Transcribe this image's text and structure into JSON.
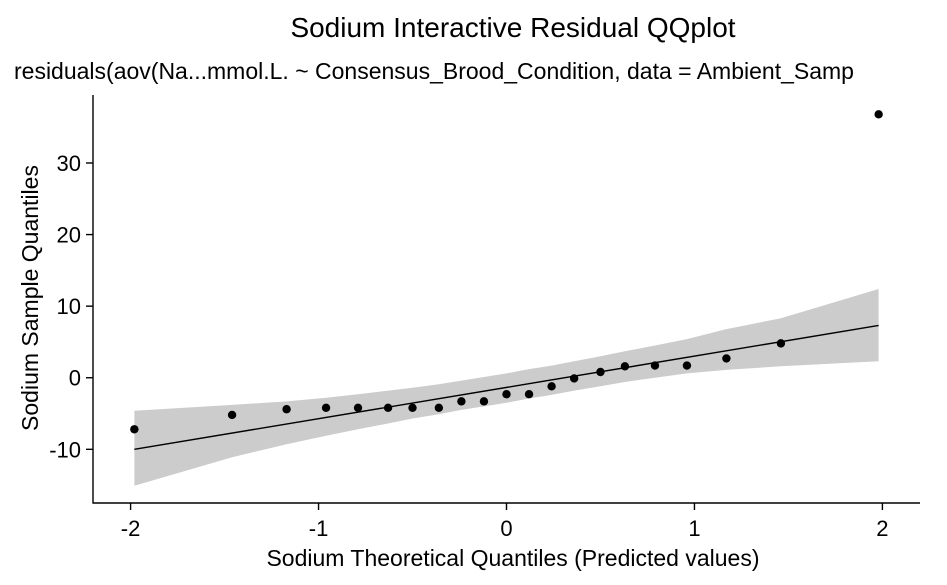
{
  "chart_data": {
    "type": "scatter",
    "title": "Sodium Interactive Residual QQplot",
    "subtitle": "residuals(aov(Na...mmol.L. ~ Consensus_Brood_Condition, data = Ambient_Samp",
    "xlabel": "Sodium Theoretical Quantiles (Predicted values)",
    "ylabel": "Sodium Sample Quantiles",
    "xlim": [
      -2.2,
      2.2
    ],
    "ylim": [
      -17.5,
      39.5
    ],
    "x_ticks": [
      -2,
      -1,
      0,
      1,
      2
    ],
    "x_tick_labels": [
      "-2",
      "-1",
      "0",
      "1",
      "2"
    ],
    "y_ticks": [
      -10,
      0,
      10,
      20,
      30
    ],
    "y_tick_labels": [
      "-10",
      "0",
      "10",
      "20",
      "30"
    ],
    "grid": false,
    "points": {
      "x": [
        -1.98,
        -1.46,
        -1.17,
        -0.96,
        -0.79,
        -0.63,
        -0.5,
        -0.36,
        -0.24,
        -0.12,
        0.0,
        0.12,
        0.24,
        0.36,
        0.5,
        0.63,
        0.79,
        0.96,
        1.17,
        1.46,
        1.98
      ],
      "y": [
        -7.2,
        -5.2,
        -4.4,
        -4.2,
        -4.2,
        -4.2,
        -4.2,
        -4.2,
        -3.3,
        -3.3,
        -2.3,
        -2.3,
        -1.2,
        -0.1,
        0.8,
        1.6,
        1.7,
        1.7,
        2.7,
        4.8,
        36.8
      ]
    },
    "reference_line": {
      "x": [
        -1.98,
        1.98
      ],
      "y": [
        -10.0,
        7.3
      ]
    },
    "confidence_band": {
      "x": [
        -1.98,
        -1.46,
        -1.17,
        -0.96,
        -0.79,
        -0.63,
        -0.5,
        -0.36,
        -0.24,
        -0.12,
        0.0,
        0.12,
        0.24,
        0.36,
        0.5,
        0.63,
        0.79,
        0.96,
        1.17,
        1.46,
        1.98
      ],
      "lower": [
        -15.1,
        -11.1,
        -9.3,
        -8.1,
        -7.2,
        -6.4,
        -5.7,
        -5.1,
        -4.5,
        -4.0,
        -3.5,
        -2.9,
        -2.4,
        -1.8,
        -1.2,
        -0.6,
        0.0,
        0.6,
        1.1,
        1.6,
        2.3
      ],
      "upper": [
        -4.6,
        -3.8,
        -3.3,
        -2.8,
        -2.3,
        -1.8,
        -1.4,
        -0.9,
        -0.4,
        0.1,
        0.6,
        1.2,
        1.7,
        2.3,
        3.0,
        3.7,
        4.5,
        5.4,
        6.8,
        8.3,
        12.4
      ]
    }
  },
  "colors": {
    "point": "#000000",
    "line": "#000000",
    "band": "#cccccc",
    "axis": "#000000",
    "text": "#000000",
    "background": "#ffffff"
  }
}
